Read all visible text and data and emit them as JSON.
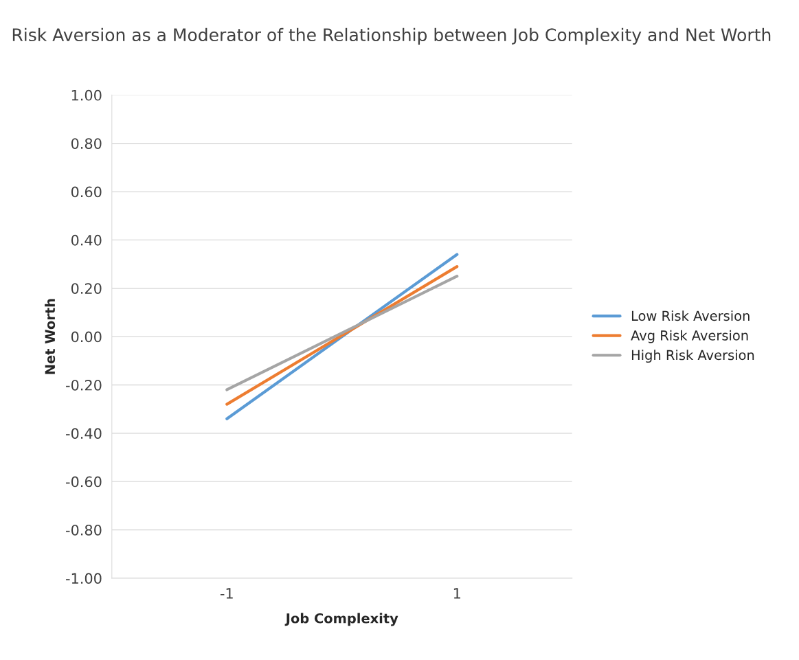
{
  "chart_data": {
    "type": "line",
    "title": "Risk Aversion as a Moderator of the Relationship between Job Complexity and Net Worth",
    "xlabel": "Job Complexity",
    "ylabel": "Net Worth",
    "categories": [
      "-1",
      "1"
    ],
    "series": [
      {
        "name": "Low Risk Aversion",
        "color": "#5b9bd5",
        "values": [
          -0.34,
          0.34
        ]
      },
      {
        "name": "Avg Risk Aversion",
        "color": "#ed7d31",
        "values": [
          -0.28,
          0.29
        ]
      },
      {
        "name": "High Risk Aversion",
        "color": "#a5a5a5",
        "values": [
          -0.22,
          0.25
        ]
      }
    ],
    "ylim": [
      -1,
      1
    ],
    "yticks": [
      {
        "value": -1,
        "label": "-1.00"
      },
      {
        "value": -0.8,
        "label": "-0.80"
      },
      {
        "value": -0.6,
        "label": "-0.60"
      },
      {
        "value": -0.4,
        "label": "-0.40"
      },
      {
        "value": -0.2,
        "label": "-0.20"
      },
      {
        "value": 0,
        "label": "0.00"
      },
      {
        "value": 0.2,
        "label": "0.20"
      },
      {
        "value": 0.4,
        "label": "0.40"
      },
      {
        "value": 0.6,
        "label": "0.60"
      },
      {
        "value": 0.8,
        "label": "0.80"
      },
      {
        "value": 1,
        "label": "1.00"
      }
    ],
    "grid": "y",
    "legend": "right",
    "marker": "none",
    "line_style": "solid"
  }
}
